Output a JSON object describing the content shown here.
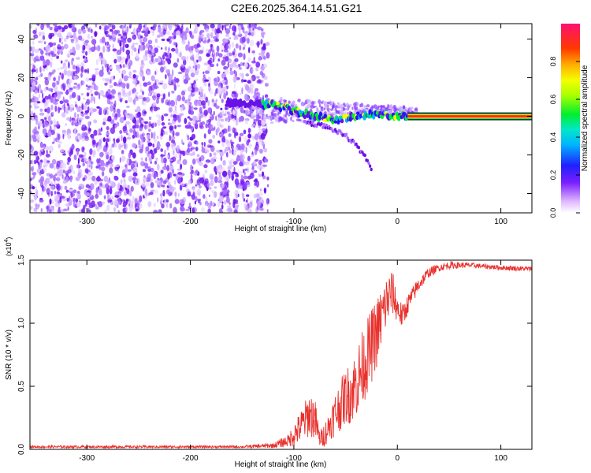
{
  "title": "C2E6.2025.364.14.51.G21",
  "chart_data": [
    {
      "type": "heatmap",
      "xlabel": "Height of straight line (km)",
      "ylabel": "Frequency (Hz)",
      "xlim": [
        -355,
        130
      ],
      "ylim": [
        -50,
        48
      ],
      "xticks": [
        -300,
        -200,
        -100,
        0,
        100
      ],
      "yticks": [
        -40,
        -20,
        0,
        20,
        40
      ],
      "noise_region_x": [
        -355,
        -125
      ],
      "noise_region_y": [
        -50,
        48
      ],
      "signal_track": {
        "x": [
          -165,
          -130,
          -120,
          -100,
          -80,
          -60,
          -40,
          -20,
          0,
          10,
          130
        ],
        "y": [
          7,
          6,
          6,
          3,
          0,
          -2,
          0,
          1,
          0,
          0,
          0
        ]
      },
      "branch_track": {
        "x": [
          -90,
          -70,
          -50,
          -40,
          -30,
          -25
        ],
        "y": [
          -3,
          -5,
          -10,
          -15,
          -22,
          -27
        ]
      },
      "bright_band_x": [
        10,
        130
      ],
      "colorbar": {
        "label": "Normalized spectral amplitude",
        "range": [
          0.0,
          1.0
        ],
        "ticks": [
          0.0,
          0.2,
          0.4,
          0.6,
          0.8
        ]
      }
    },
    {
      "type": "line",
      "xlabel": "Height of straight line (km)",
      "ylabel": "SNR (10 * v/v)",
      "y_multiplier_label": "(x10",
      "y_multiplier_exp": "4",
      "y_multiplier_close": ")",
      "xlim": [
        -355,
        130
      ],
      "ylim": [
        0,
        1.5
      ],
      "xticks": [
        -300,
        -200,
        -100,
        0,
        100
      ],
      "yticks": [
        0.0,
        0.5,
        1.0,
        1.5
      ],
      "ytick_labels": [
        "0.0",
        "0.5",
        "1.0",
        "1.5"
      ],
      "series": [
        {
          "name": "SNR",
          "color": "#e8302c",
          "x": [
            -355,
            -250,
            -150,
            -120,
            -105,
            -100,
            -95,
            -90,
            -85,
            -80,
            -75,
            -70,
            -65,
            -60,
            -55,
            -50,
            -45,
            -40,
            -35,
            -30,
            -25,
            -20,
            -15,
            -10,
            -5,
            0,
            5,
            10,
            20,
            30,
            40,
            50,
            70,
            100,
            130
          ],
          "y": [
            0.02,
            0.02,
            0.02,
            0.03,
            0.07,
            0.12,
            0.16,
            0.22,
            0.28,
            0.25,
            0.08,
            0.12,
            0.2,
            0.28,
            0.35,
            0.42,
            0.45,
            0.52,
            0.62,
            0.72,
            0.82,
            0.92,
            1.05,
            1.18,
            1.25,
            1.12,
            1.05,
            1.15,
            1.3,
            1.4,
            1.44,
            1.46,
            1.46,
            1.44,
            1.43
          ],
          "noise": [
            0.01,
            0.01,
            0.01,
            0.02,
            0.05,
            0.1,
            0.12,
            0.15,
            0.18,
            0.18,
            0.06,
            0.1,
            0.12,
            0.18,
            0.2,
            0.22,
            0.25,
            0.28,
            0.3,
            0.3,
            0.3,
            0.28,
            0.25,
            0.22,
            0.18,
            0.12,
            0.1,
            0.08,
            0.06,
            0.04,
            0.03,
            0.03,
            0.02,
            0.02,
            0.02
          ]
        }
      ]
    }
  ]
}
